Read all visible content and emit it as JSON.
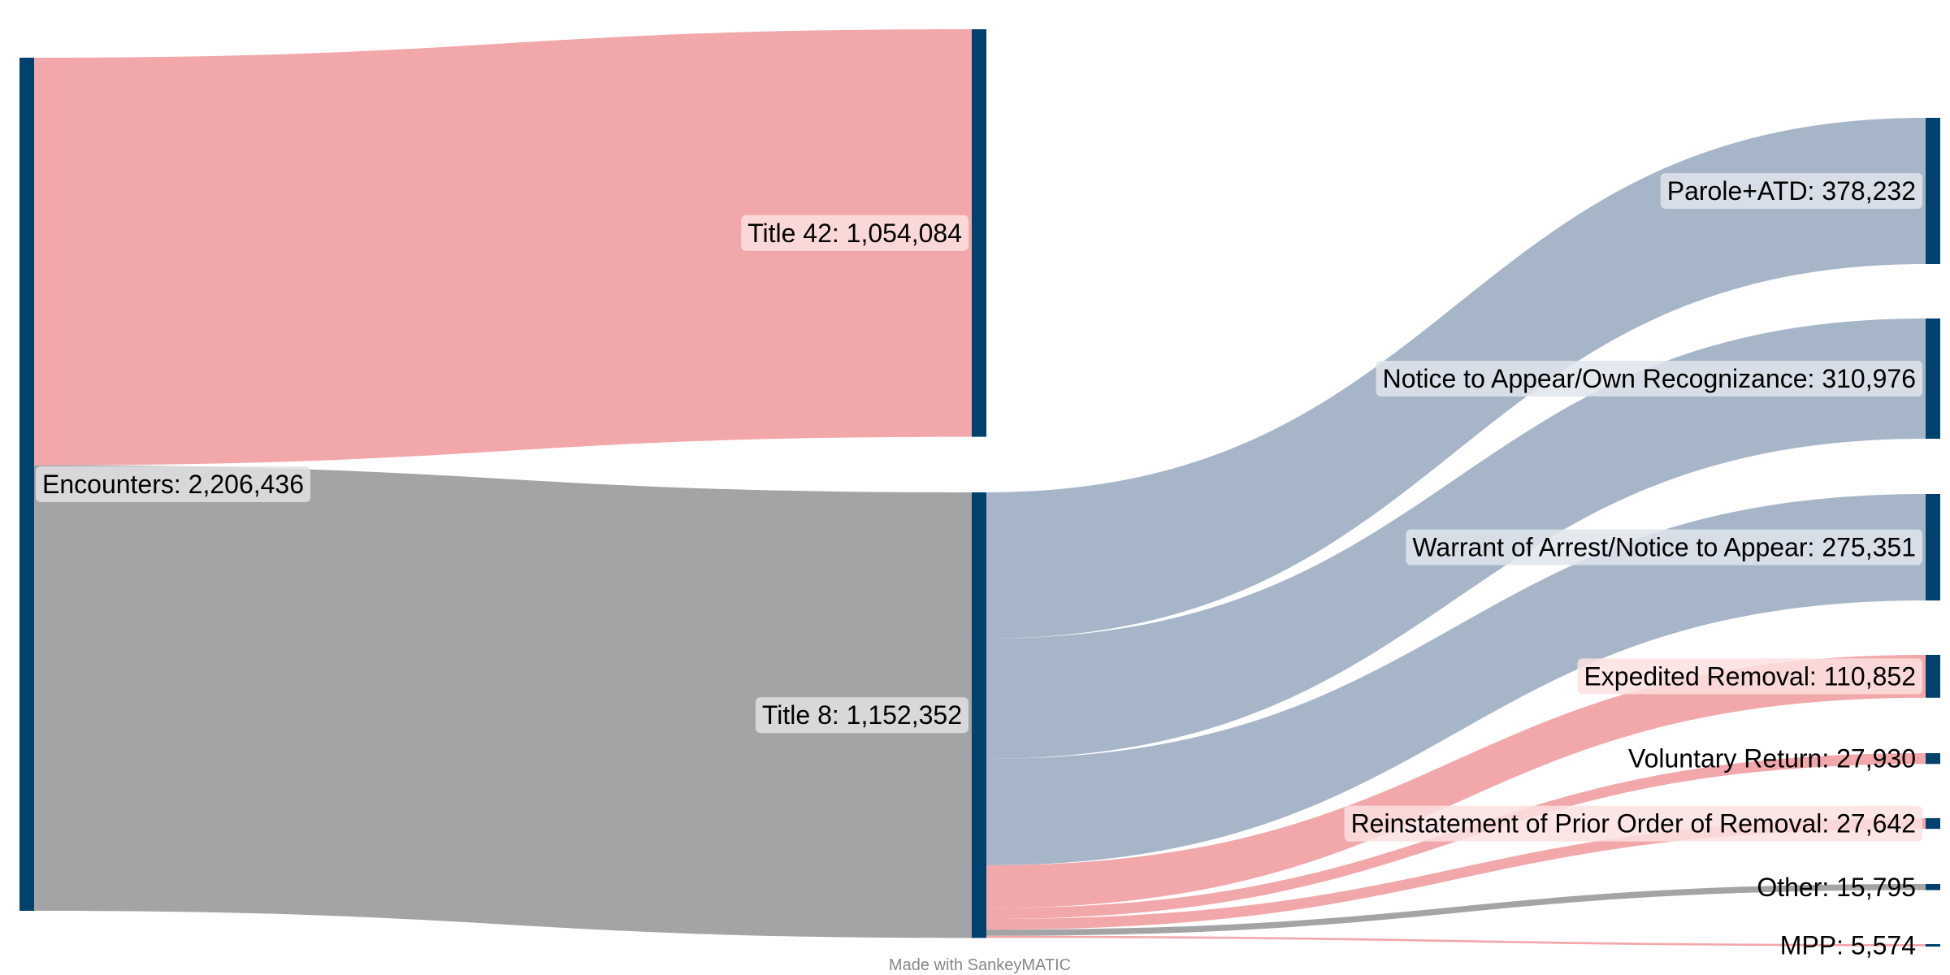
{
  "chart_data": {
    "type": "sankey",
    "nodes": [
      {
        "name": "Encounters",
        "value": 2206436,
        "label": "Encounters: 2,206,436",
        "column": 0
      },
      {
        "name": "Title 42",
        "value": 1054084,
        "label": "Title 42: 1,054,084",
        "column": 1
      },
      {
        "name": "Title 8",
        "value": 1152352,
        "label": "Title 8: 1,152,352",
        "column": 1
      },
      {
        "name": "Parole+ATD",
        "value": 378232,
        "label": "Parole+ATD: 378,232",
        "column": 2
      },
      {
        "name": "Notice to Appear/Own Recognizance",
        "value": 310976,
        "label": "Notice to Appear/Own Recognizance: 310,976",
        "column": 2
      },
      {
        "name": "Warrant of Arrest/Notice to Appear",
        "value": 275351,
        "label": "Warrant of Arrest/Notice to Appear: 275,351",
        "column": 2
      },
      {
        "name": "Expedited Removal",
        "value": 110852,
        "label": "Expedited Removal: 110,852",
        "column": 2
      },
      {
        "name": "Voluntary Return",
        "value": 27930,
        "label": "Voluntary Return: 27,930",
        "column": 2
      },
      {
        "name": "Reinstatement of Prior Order of Removal",
        "value": 27642,
        "label": "Reinstatement of Prior Order of Removal: 27,642",
        "column": 2
      },
      {
        "name": "Other",
        "value": 15795,
        "label": "Other: 15,795",
        "column": 2
      },
      {
        "name": "MPP",
        "value": 5574,
        "label": "MPP: 5,574",
        "column": 2
      }
    ],
    "links": [
      {
        "source": "Encounters",
        "target": "Title 42",
        "value": 1054084,
        "color": "#f2a7aa"
      },
      {
        "source": "Encounters",
        "target": "Title 8",
        "value": 1152352,
        "color": "#a3a4a6"
      },
      {
        "source": "Title 8",
        "target": "Parole+ATD",
        "value": 378232,
        "color": "#a6b6c8"
      },
      {
        "source": "Title 8",
        "target": "Notice to Appear/Own Recognizance",
        "value": 310976,
        "color": "#a6b6c8"
      },
      {
        "source": "Title 8",
        "target": "Warrant of Arrest/Notice to Appear",
        "value": 275351,
        "color": "#a6b6c8"
      },
      {
        "source": "Title 8",
        "target": "Expedited Removal",
        "value": 110852,
        "color": "#f2a7aa"
      },
      {
        "source": "Title 8",
        "target": "Voluntary Return",
        "value": 27930,
        "color": "#f2a7aa"
      },
      {
        "source": "Title 8",
        "target": "Reinstatement of Prior Order of Removal",
        "value": 27642,
        "color": "#f2a7aa"
      },
      {
        "source": "Title 8",
        "target": "Other",
        "value": 15795,
        "color": "#a3a4a6"
      },
      {
        "source": "Title 8",
        "target": "MPP",
        "value": 5574,
        "color": "#f2a7aa"
      }
    ],
    "colors": {
      "node": "#00416e",
      "label_bg_blue": "#dfe5ec",
      "label_bg_red": "#fce0e1",
      "label_bg_gray": "#e2e2e3"
    }
  },
  "footer": "Made with SankeyMATIC"
}
